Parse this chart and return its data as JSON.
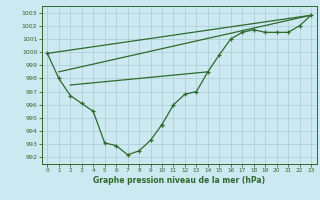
{
  "xlabel": "Graphe pression niveau de la mer (hPa)",
  "background_color": "#cce8f0",
  "grid_color": "#b0d4dc",
  "line_color": "#2d6a2d",
  "xlim": [
    -0.5,
    23.5
  ],
  "ylim": [
    991.5,
    1003.5
  ],
  "yticks": [
    992,
    993,
    994,
    995,
    996,
    997,
    998,
    999,
    1000,
    1001,
    1002,
    1003
  ],
  "xticks": [
    0,
    1,
    2,
    3,
    4,
    5,
    6,
    7,
    8,
    9,
    10,
    11,
    12,
    13,
    14,
    15,
    16,
    17,
    18,
    19,
    20,
    21,
    22,
    23
  ],
  "curve1_x": [
    0,
    1,
    2,
    3,
    4,
    5,
    6,
    7,
    8,
    9,
    10
  ],
  "curve1_y": [
    999.9,
    998.0,
    996.7,
    996.1,
    995.5,
    993.1,
    992.9,
    992.2,
    992.5,
    993.3,
    994.5
  ],
  "curve2_x": [
    10,
    11,
    12,
    13,
    14,
    15,
    16,
    17,
    18,
    19,
    20,
    21,
    22,
    23
  ],
  "curve2_y": [
    994.5,
    996.0,
    996.8,
    997.0,
    998.5,
    999.8,
    1001.0,
    1001.5,
    1001.7,
    1001.5,
    1001.5,
    1001.5,
    1002.0,
    1002.8
  ],
  "trend1_x": [
    0,
    23
  ],
  "trend1_y": [
    999.9,
    1002.8
  ],
  "trend2_x": [
    1,
    23
  ],
  "trend2_y": [
    998.5,
    1002.8
  ],
  "trend3_x": [
    2,
    14
  ],
  "trend3_y": [
    997.5,
    998.5
  ],
  "marker": "+"
}
